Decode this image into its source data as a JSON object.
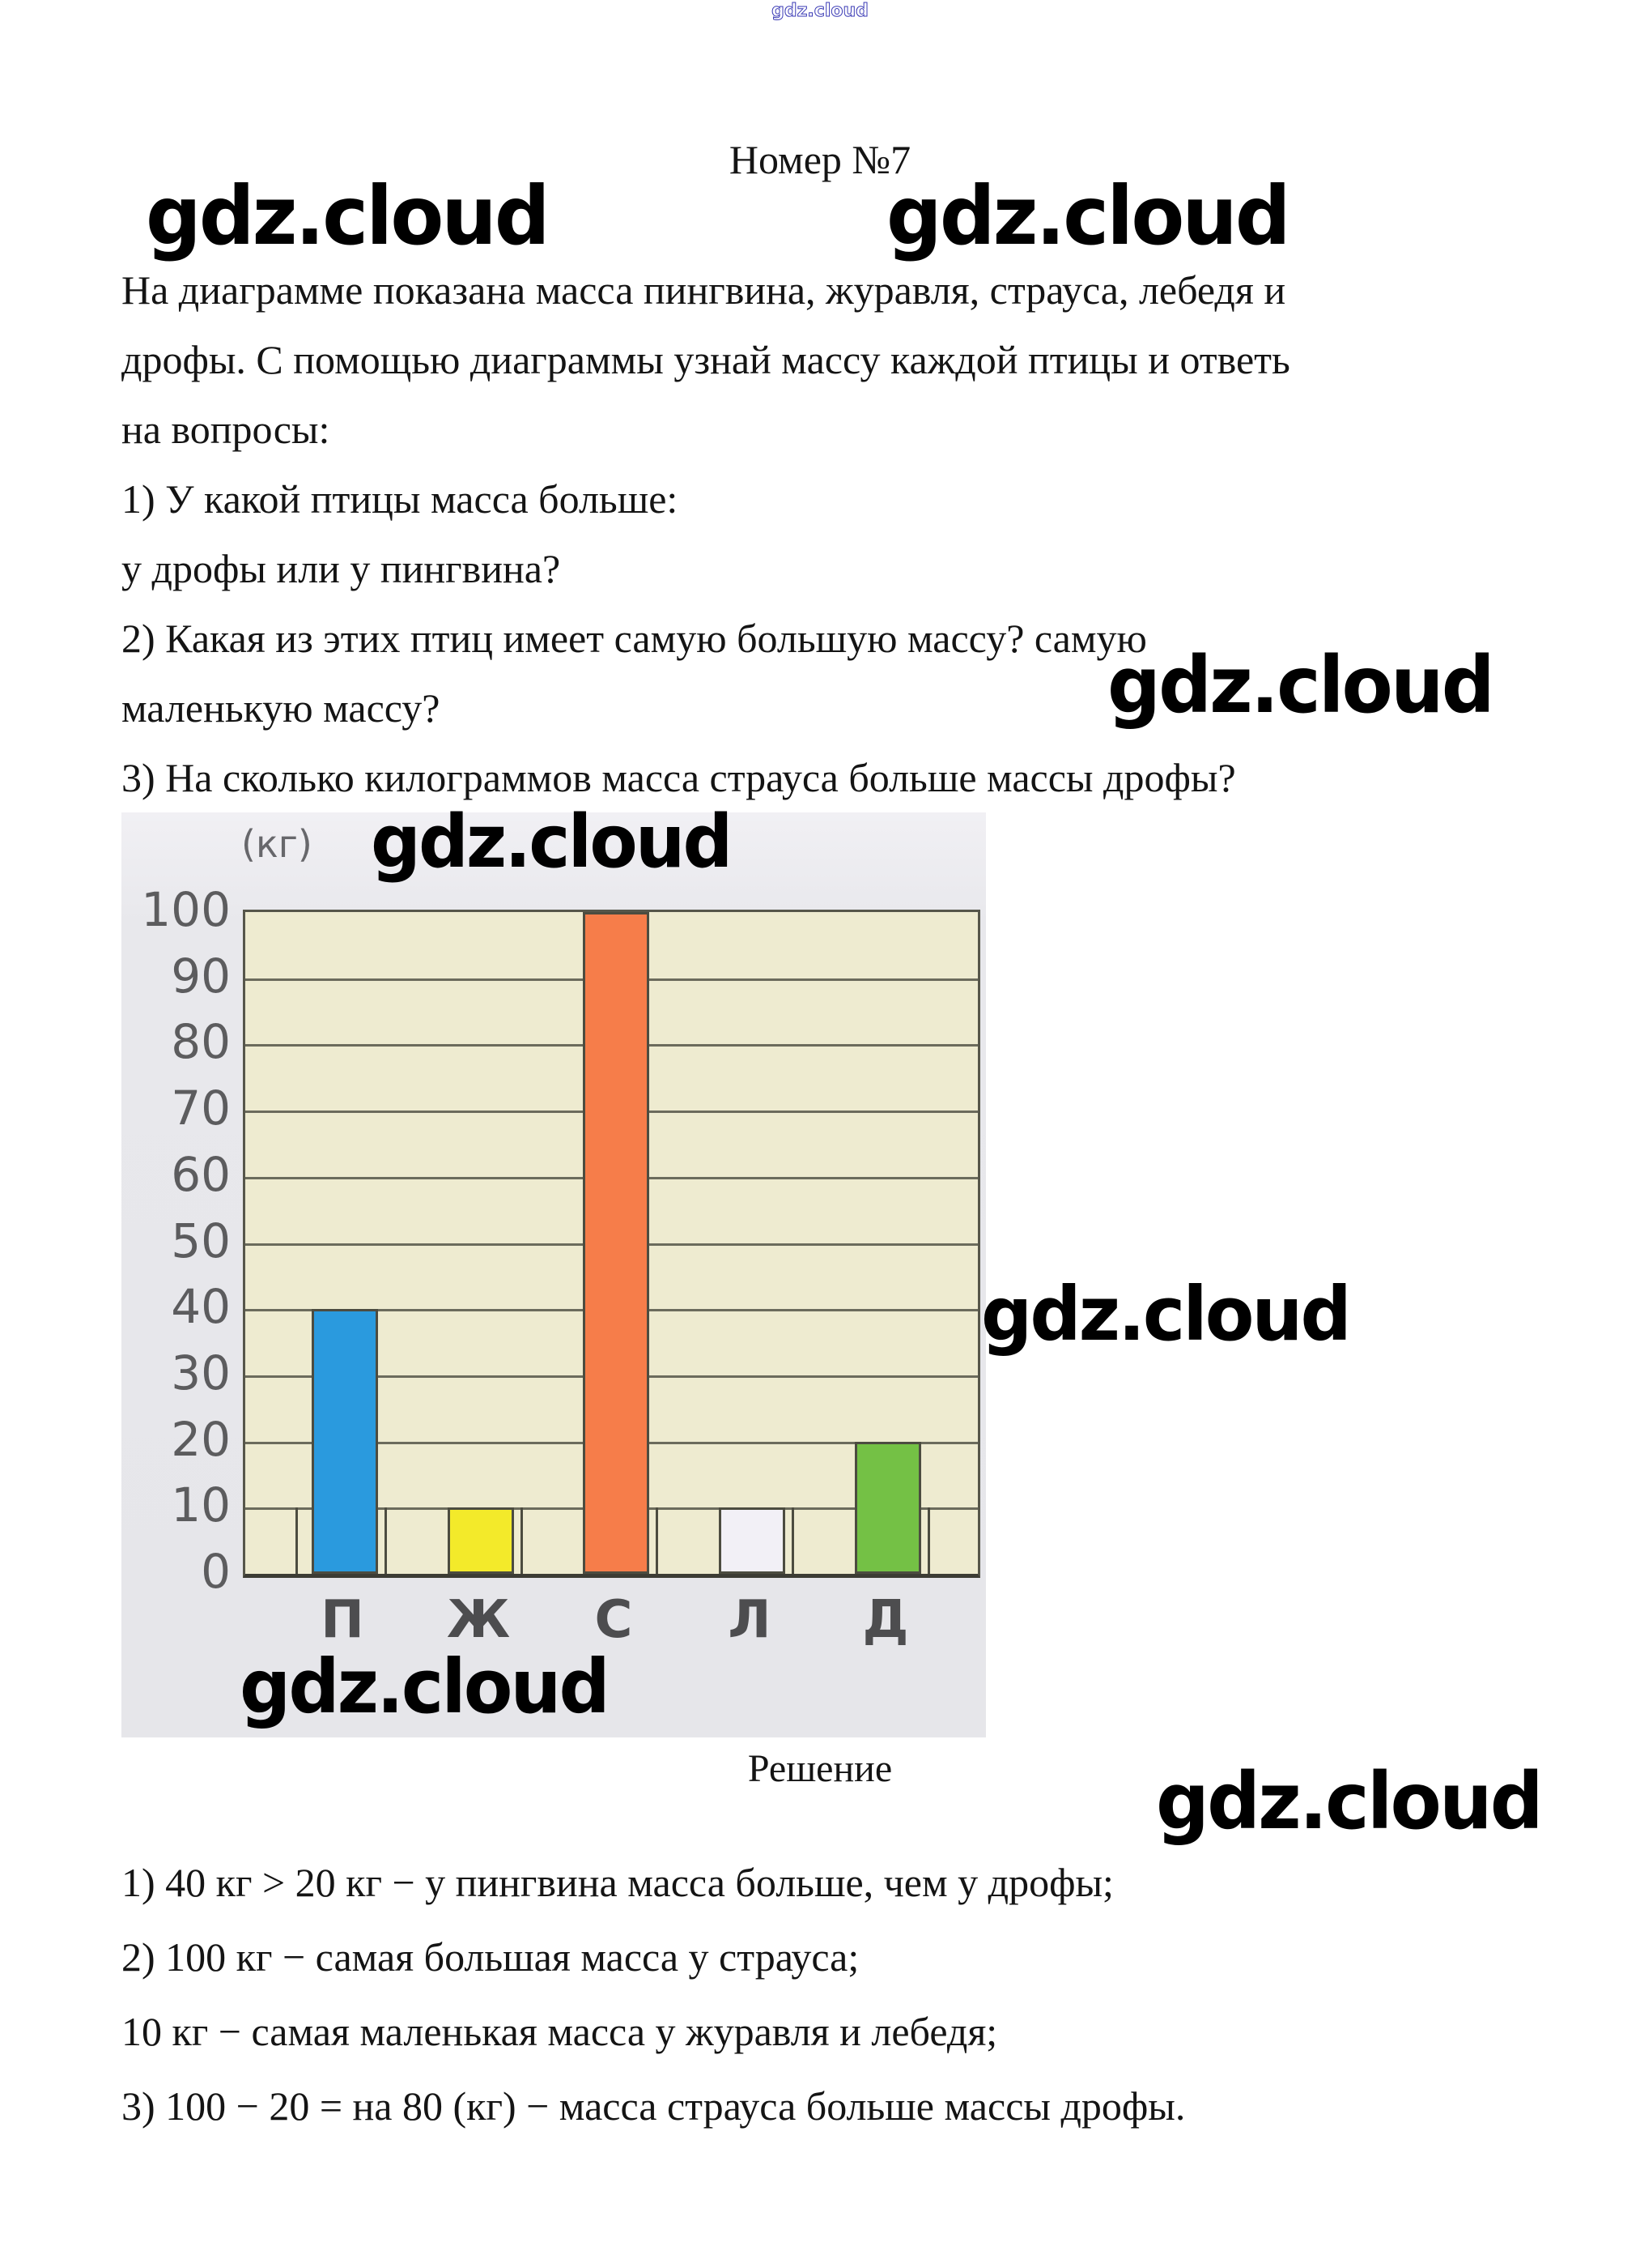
{
  "page": {
    "watermark": "gdz.cloud",
    "title": "Номер №7"
  },
  "problem": {
    "lines": [
      "На диаграмме показана масса пингвина, журавля, страуса, лебедя и",
      "дрофы. С помощью диаграммы узнай массу каждой птицы и ответь",
      "на вопросы:",
      "1) У какой птицы масса больше:",
      "у дрофы или у пингвина?",
      "2) Какая из этих птиц имеет самую большую массу? самую",
      "маленькую массу?",
      "3) На сколько килограммов масса страуса больше массы дрофы?"
    ]
  },
  "chart_data": {
    "type": "bar",
    "title": "",
    "unit_label": "(кг)",
    "categories": [
      "П",
      "Ж",
      "С",
      "Л",
      "Д"
    ],
    "values": [
      40,
      10,
      100,
      10,
      20
    ],
    "ylim": [
      0,
      100
    ],
    "yticks": [
      100,
      90,
      80,
      70,
      60,
      50,
      40,
      30,
      20,
      10,
      0
    ],
    "grid": true,
    "legend": false,
    "bar_colors": [
      "#2a9ade",
      "#f3ea2a",
      "#f67d4a",
      "#f2f0f6",
      "#74c145"
    ],
    "plot_bg": "#eeebd0"
  },
  "solution": {
    "heading": "Решение",
    "lines": [
      "1) 40 кг > 20 кг − у пингвина масса больше, чем у дрофы;",
      "2) 100 кг − самая большая масса у страуса;",
      "10 кг − самая маленькая масса у журавля и лебедя;",
      "3) 100 − 20 = на 80 (кг) − масса страуса больше массы дрофы."
    ]
  }
}
